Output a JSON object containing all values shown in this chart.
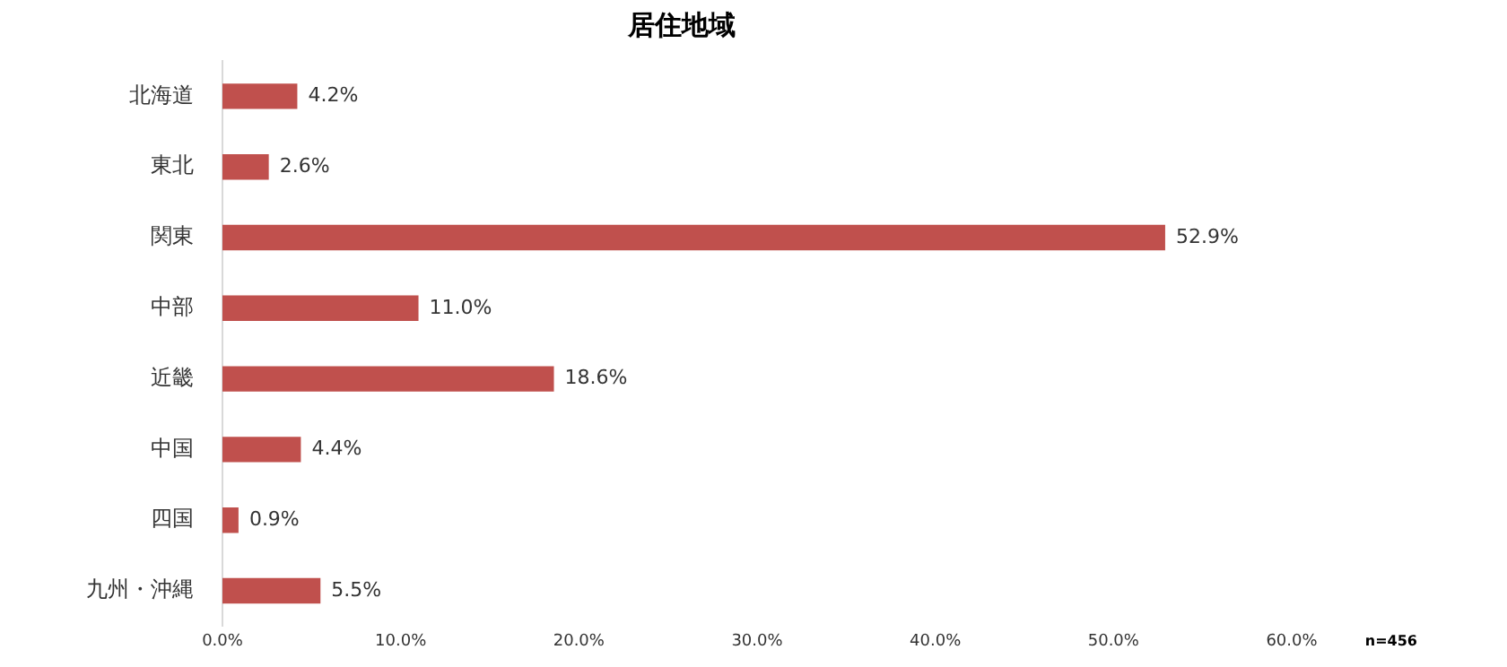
{
  "chart_data": {
    "type": "bar",
    "orientation": "horizontal",
    "title": "居住地域",
    "categories": [
      "北海道",
      "東北",
      "関東",
      "中部",
      "近畿",
      "中国",
      "四国",
      "九州・沖縄"
    ],
    "values": [
      4.2,
      2.6,
      52.9,
      11.0,
      18.6,
      4.4,
      0.9,
      5.5
    ],
    "value_labels": [
      "4.2%",
      "2.6%",
      "52.9%",
      "11.0%",
      "18.6%",
      "4.4%",
      "0.9%",
      "5.5%"
    ],
    "color": "#c0504d",
    "xlim": [
      0,
      60
    ],
    "xticks": [
      {
        "value": 0,
        "label": "0.0%"
      },
      {
        "value": 10,
        "label": "10.0%"
      },
      {
        "value": 20,
        "label": "20.0%"
      },
      {
        "value": 30,
        "label": "30.0%"
      },
      {
        "value": 40,
        "label": "40.0%"
      },
      {
        "value": 50,
        "label": "50.0%"
      },
      {
        "value": 60,
        "label": "60.0%"
      }
    ],
    "annotations": [
      "n=456"
    ]
  }
}
